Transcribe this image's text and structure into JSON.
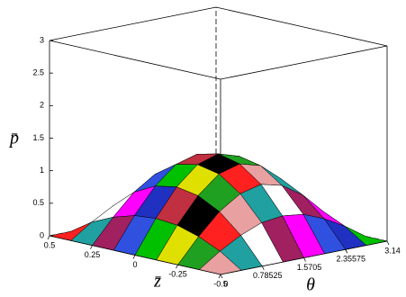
{
  "chart_data": {
    "type": "surface",
    "xlabel": "θ",
    "ylabel": "z̄",
    "zlabel": "p̄",
    "x": [
      0,
      0.3925,
      0.785,
      1.1775,
      1.57,
      1.9625,
      2.355,
      2.7475,
      3.14
    ],
    "y": [
      -0.5,
      -0.375,
      -0.25,
      -0.125,
      0,
      0.125,
      0.25,
      0.375,
      0.5
    ],
    "z": [
      [
        0,
        0,
        0,
        0,
        0,
        0,
        0,
        0,
        0
      ],
      [
        0,
        0.22,
        0.4,
        0.53,
        0.57,
        0.53,
        0.4,
        0.22,
        0
      ],
      [
        0,
        0.37,
        0.69,
        0.9,
        0.98,
        0.9,
        0.69,
        0.37,
        0
      ],
      [
        0,
        0.47,
        0.86,
        1.13,
        1.22,
        1.13,
        0.86,
        0.47,
        0
      ],
      [
        0,
        0.5,
        0.92,
        1.2,
        1.3,
        1.2,
        0.92,
        0.5,
        0
      ],
      [
        0,
        0.47,
        0.86,
        1.13,
        1.22,
        1.13,
        0.86,
        0.47,
        0
      ],
      [
        0,
        0.37,
        0.69,
        0.9,
        0.98,
        0.9,
        0.69,
        0.37,
        0
      ],
      [
        0,
        0.22,
        0.4,
        0.53,
        0.57,
        0.53,
        0.4,
        0.22,
        0
      ],
      [
        0,
        0,
        0,
        0,
        0,
        0,
        0,
        0,
        0
      ]
    ],
    "colors": [
      "#e8a0a0",
      "#c03040",
      "#a02060",
      "#20a020",
      "#2030c0",
      "#20a0a0",
      "#e0e000",
      "#ff00ff",
      "#ff2020",
      "#00c000",
      "#ffffff",
      "#000000",
      "#3050e0"
    ],
    "xlim": [
      0,
      3.14
    ],
    "ylim": [
      -0.5,
      0.5
    ],
    "zlim": [
      0,
      3
    ],
    "xticks": [
      0,
      0.78525,
      1.5705,
      2.35575,
      3.14
    ],
    "yticks": [
      0.5,
      0.25,
      0,
      -0.25,
      -0.5
    ],
    "zticks": [
      0,
      0.5,
      1,
      1.5,
      2,
      2.5,
      3
    ]
  }
}
